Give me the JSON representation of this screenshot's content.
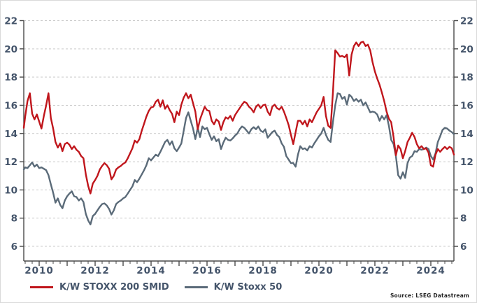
{
  "chart_data": {
    "type": "line",
    "title": "",
    "xlabel": "",
    "ylabel": "",
    "grid": "horizontal-dashed",
    "legend_position": "bottom-left",
    "y_axis": {
      "side": "both",
      "ticks": [
        22,
        20,
        18,
        16,
        14,
        12,
        10,
        8,
        6
      ],
      "drawn_bottom_value": 4.9
    },
    "x_axis": {
      "tick_labels": [
        "2010",
        "2012",
        "2014",
        "2016",
        "2018",
        "2020",
        "2022",
        "2024"
      ],
      "major_tick_every_years": 1,
      "minor_ticks": "quarterly",
      "range_decimal_years": [
        2009.42,
        2024.83
      ]
    },
    "x_start": 2009.417,
    "x_step": 0.0833333,
    "series": [
      {
        "name": "K/W STOXX 200 SMID",
        "color": "#c0161c",
        "values": [
          14.4,
          15.2,
          16.3,
          16.85,
          15.4,
          15.0,
          15.35,
          14.85,
          14.35,
          15.25,
          16.0,
          16.85,
          15.1,
          14.35,
          13.4,
          13.0,
          13.3,
          12.75,
          13.25,
          13.35,
          13.2,
          12.9,
          13.1,
          12.85,
          12.7,
          12.4,
          12.25,
          11.1,
          10.3,
          9.75,
          10.45,
          10.7,
          11.0,
          11.45,
          11.7,
          11.9,
          11.75,
          11.5,
          10.75,
          11.0,
          11.45,
          11.6,
          11.7,
          11.85,
          11.95,
          12.25,
          12.6,
          12.95,
          13.5,
          13.35,
          13.6,
          14.2,
          14.7,
          15.2,
          15.6,
          15.85,
          15.9,
          16.25,
          16.4,
          15.9,
          16.35,
          15.75,
          16.0,
          15.65,
          15.4,
          14.8,
          15.55,
          15.3,
          16.05,
          16.55,
          16.85,
          16.5,
          16.75,
          16.15,
          15.55,
          14.3,
          15.0,
          15.45,
          15.9,
          15.65,
          15.6,
          14.9,
          14.65,
          15.0,
          14.85,
          14.25,
          14.8,
          15.15,
          15.05,
          15.25,
          14.9,
          15.3,
          15.55,
          15.8,
          16.05,
          16.25,
          16.15,
          15.9,
          15.75,
          15.5,
          15.9,
          16.05,
          15.8,
          16.0,
          16.05,
          15.55,
          15.3,
          15.9,
          16.05,
          15.8,
          15.7,
          15.9,
          15.55,
          15.1,
          14.6,
          13.9,
          13.25,
          14.1,
          14.9,
          14.9,
          14.65,
          14.9,
          14.5,
          15.0,
          14.8,
          15.15,
          15.5,
          15.75,
          16.0,
          16.6,
          15.25,
          14.55,
          14.4,
          16.9,
          19.9,
          19.7,
          19.45,
          19.5,
          19.4,
          19.6,
          18.1,
          19.6,
          20.2,
          20.45,
          20.2,
          20.45,
          20.5,
          20.2,
          20.3,
          19.9,
          19.05,
          18.4,
          17.9,
          17.45,
          16.9,
          16.3,
          15.55,
          15.05,
          14.8,
          13.75,
          12.45,
          13.15,
          12.9,
          12.25,
          12.75,
          13.4,
          13.7,
          14.05,
          13.75,
          13.25,
          12.95,
          13.1,
          12.9,
          12.95,
          12.65,
          11.75,
          11.65,
          12.5,
          12.9,
          12.7,
          12.9,
          13.05,
          12.9,
          13.05,
          12.95,
          12.5
        ]
      },
      {
        "name": "K/W Stoxx 50",
        "color": "#5b6b79",
        "values": [
          11.45,
          11.6,
          11.55,
          11.75,
          11.95,
          11.65,
          11.8,
          11.55,
          11.6,
          11.5,
          11.4,
          11.05,
          10.4,
          9.8,
          9.1,
          9.4,
          8.95,
          8.7,
          9.25,
          9.55,
          9.75,
          9.9,
          9.55,
          9.5,
          9.25,
          9.4,
          9.15,
          8.3,
          7.85,
          7.55,
          8.15,
          8.3,
          8.55,
          8.8,
          9.0,
          9.05,
          8.9,
          8.65,
          8.25,
          8.55,
          9.0,
          9.15,
          9.25,
          9.4,
          9.5,
          9.75,
          10.0,
          10.25,
          10.7,
          10.55,
          10.8,
          11.1,
          11.4,
          11.75,
          12.25,
          12.1,
          12.3,
          12.5,
          12.4,
          12.7,
          13.05,
          13.4,
          13.55,
          13.2,
          13.45,
          12.95,
          12.75,
          13.0,
          13.3,
          14.2,
          15.1,
          15.5,
          14.9,
          14.35,
          13.6,
          14.4,
          13.75,
          14.5,
          14.3,
          14.4,
          13.95,
          13.55,
          13.8,
          13.45,
          13.6,
          12.9,
          13.35,
          13.7,
          13.55,
          13.5,
          13.65,
          13.85,
          14.0,
          14.3,
          14.5,
          14.4,
          14.2,
          14.0,
          14.3,
          14.45,
          14.3,
          14.5,
          14.2,
          14.1,
          14.3,
          13.7,
          13.9,
          14.1,
          14.2,
          13.9,
          13.75,
          13.3,
          13.05,
          12.4,
          12.15,
          11.9,
          11.9,
          11.65,
          12.5,
          13.1,
          12.9,
          12.95,
          12.8,
          13.1,
          13.0,
          13.3,
          13.55,
          13.8,
          14.0,
          14.4,
          13.9,
          13.55,
          13.4,
          14.8,
          16.0,
          16.85,
          16.8,
          16.45,
          16.6,
          16.05,
          16.75,
          16.6,
          16.3,
          16.45,
          16.25,
          16.4,
          16.0,
          16.2,
          15.85,
          15.5,
          15.55,
          15.5,
          15.35,
          14.9,
          15.25,
          15.0,
          15.3,
          14.55,
          13.55,
          13.25,
          12.4,
          11.05,
          10.8,
          11.25,
          10.85,
          11.9,
          12.3,
          12.4,
          12.75,
          12.7,
          12.9,
          12.85,
          12.9,
          13.0,
          12.9,
          12.4,
          12.15,
          12.6,
          13.4,
          13.8,
          14.25,
          14.4,
          14.35,
          14.2,
          14.1,
          13.95
        ]
      }
    ]
  },
  "legend": {
    "items": [
      {
        "label": "K/W STOXX 200 SMID",
        "color": "#c0161c"
      },
      {
        "label": "K/W Stoxx 50",
        "color": "#5b6b79"
      }
    ]
  },
  "source_note": "Source: LSEG Datastream",
  "colors": {
    "axis": "#4a4a4a",
    "grid": "#c9c9c9",
    "tick_label": "#44546a",
    "background": "#ffffff",
    "frame_border": "#d9d9d9"
  }
}
